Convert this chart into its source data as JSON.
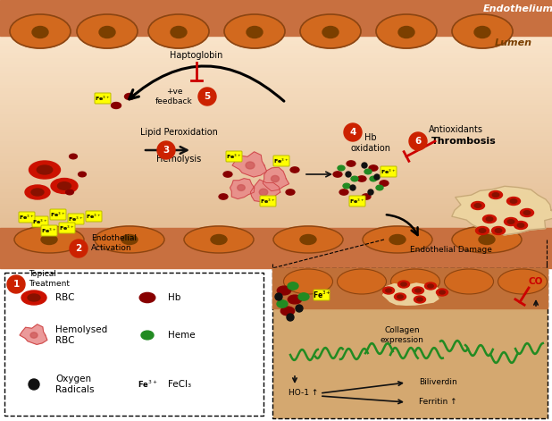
{
  "bg_color": "#FFFFFF",
  "endo_band_color": "#C87040",
  "endo_cell_color": "#D2691E",
  "endo_cell_border": "#8B4513",
  "endo_nucleus_color": "#7B3F00",
  "lumen_top_color": "#FAE8D0",
  "lumen_mid_color": "#F5D8B0",
  "lumen_bot_color": "#E8C080",
  "vessel_wall_color": "#C87040",
  "rbc_color": "#CC1100",
  "rbc_inner": "#881100",
  "hb_color": "#880000",
  "heme_color": "#228B22",
  "oxygen_color": "#111111",
  "hemolysed_color": "#E88888",
  "hemolysed_inner": "#CC5555",
  "hemolysed_border": "#CC4444",
  "thrombus_color": "#EDD5A0",
  "thrombus_border": "#C8A878",
  "fecl3_bg": "#FFFF00",
  "fecl3_border": "#BBBB00",
  "step_circle_color": "#CC2200",
  "arrow_color": "#111111",
  "inhibit_color": "#CC0000",
  "inset_bg": "#D4A870",
  "inset_vessel_color": "#C07038",
  "legend_bg": "#FFFFFF",
  "collagen_color": "#228B22",
  "endothelium_label": "Endothelium",
  "lumen_label": "Lumen",
  "haptoglobin_label": "Haptoglobin",
  "feedback_label": "+ve\nfeedback",
  "lipid_label": "Lipid Peroxidation",
  "hemolysis_label": "Hemolysis",
  "endothelial_activation_label": "Endothelial\nActivation",
  "topical_label": "Topical\nTreatment",
  "hb_oxidation_label": "Hb\noxidation",
  "antioxidants_label": "Antioxidants",
  "thrombosis_label": "Thrombosis",
  "endothelial_damage_label": "Endothelial Damage",
  "co_label": "CO",
  "collagen_label": "Collagen\nexpression",
  "ho1_label": "HO-1 ↑",
  "biliverdin_label": "Biliverdin",
  "ferritin_label": "Ferritin ↑",
  "legend_rbc": "RBC",
  "legend_hemolysed": "Hemolysed\nRBC",
  "legend_oxygen": "Oxygen\nRadicals",
  "legend_hb": "Hb",
  "legend_heme": "Heme",
  "legend_fecl3": "FeCl₃",
  "figsize": [
    6.18,
    4.71
  ],
  "dpi": 100
}
